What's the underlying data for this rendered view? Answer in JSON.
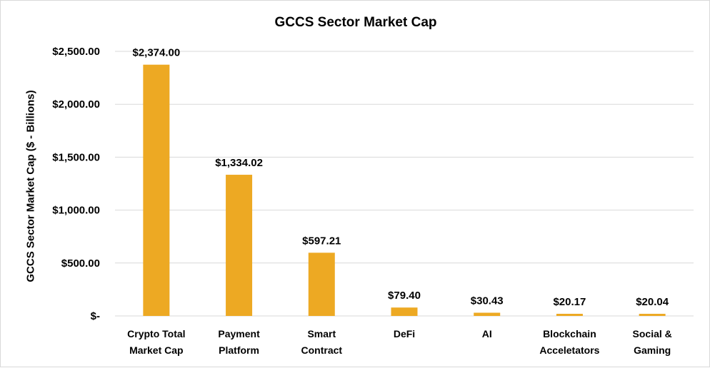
{
  "chart_data": {
    "type": "bar",
    "title": "GCCS Sector Market Cap",
    "xlabel": "",
    "ylabel": "GCCS Sector Market Cap ($ - Billions)",
    "categories": [
      [
        "Crypto Total",
        "Market Cap"
      ],
      [
        "Payment",
        "Platform"
      ],
      [
        "Smart",
        "Contract"
      ],
      [
        "DeFi"
      ],
      [
        "AI"
      ],
      [
        "Blockchain",
        "Acceletators"
      ],
      [
        "Social &",
        "Gaming"
      ]
    ],
    "values": [
      2374.0,
      1334.02,
      597.21,
      79.4,
      30.43,
      20.17,
      20.04
    ],
    "data_labels": [
      "$2,374.00",
      "$1,334.02",
      "$597.21",
      "$79.40",
      "$30.43",
      "$20.17",
      "$20.04"
    ],
    "ylim": [
      0,
      2500
    ],
    "yticks": [
      0,
      500,
      1000,
      1500,
      2000,
      2500
    ],
    "ytick_labels": [
      "$-",
      "$500.00",
      "$1,000.00",
      "$1,500.00",
      "$2,000.00",
      "$2,500.00"
    ],
    "grid": true,
    "legend": "none",
    "bar_color": "#EDA923",
    "grid_color": "#D9D9D9"
  }
}
